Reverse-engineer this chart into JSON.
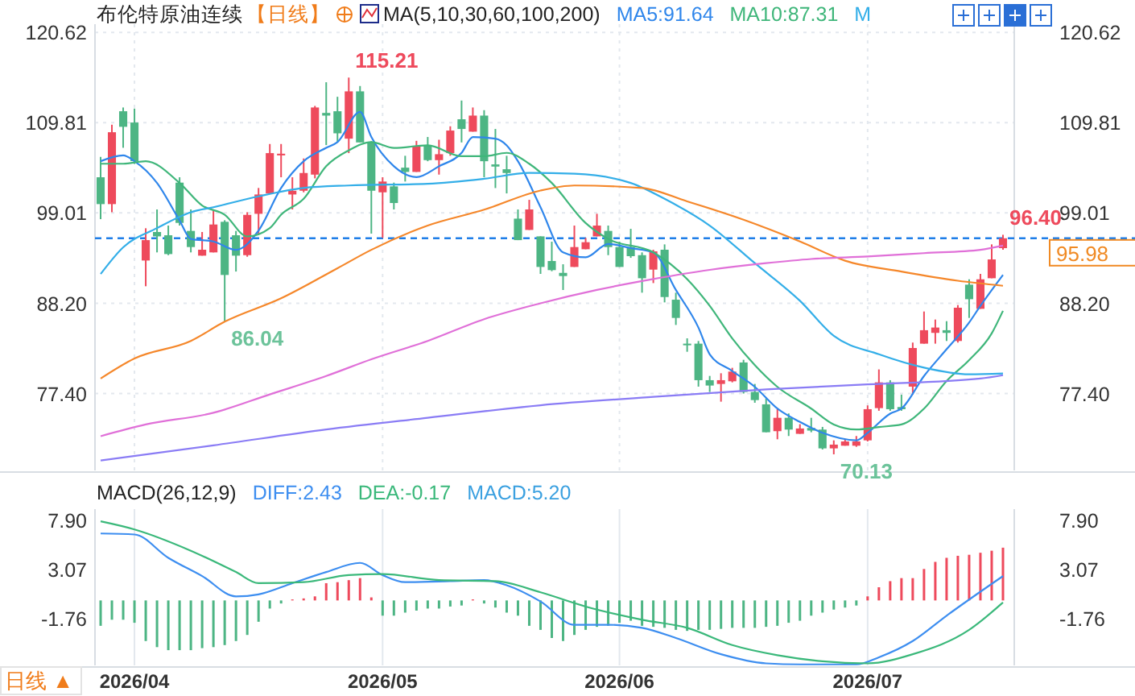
{
  "chart_data": [
    {
      "type": "candlestick",
      "title": "布伦特原油连续",
      "subtitle": "【日线】",
      "legend_title": "MA(5,10,30,60,100,200)",
      "legend": "top",
      "grid": true,
      "tick_labels": "y",
      "categories": [
        null,
        null,
        null,
        "2026/04",
        null,
        null,
        null,
        null,
        null,
        null,
        null,
        null,
        null,
        null,
        null,
        null,
        null,
        null,
        null,
        null,
        null,
        null,
        null,
        null,
        null,
        "2026/05",
        null,
        null,
        null,
        null,
        null,
        null,
        null,
        null,
        null,
        null,
        null,
        null,
        null,
        null,
        null,
        null,
        null,
        null,
        null,
        null,
        "2026/06",
        null,
        null,
        null,
        null,
        null,
        null,
        null,
        null,
        null,
        null,
        null,
        null,
        null,
        null,
        null,
        null,
        null,
        null,
        null,
        null,
        null,
        "2026/07",
        null,
        null,
        null,
        null,
        null,
        null,
        null,
        null,
        null,
        null,
        null,
        null
      ],
      "ylim": [
        68.2,
        121.6
      ],
      "yticks": [
        {
          "value": 77.4,
          "label": "77.40"
        },
        {
          "value": 88.2,
          "label": "88.20"
        },
        {
          "value": 99.01,
          "label": "99.01"
        },
        {
          "value": 109.81,
          "label": "109.81"
        },
        {
          "value": 120.62,
          "label": "120.62"
        }
      ],
      "y2lim": [
        68.2,
        121.6
      ],
      "y2ticks": [
        {
          "value": 77.4,
          "label": "77.40"
        },
        {
          "value": 88.2,
          "label": "88.20"
        },
        {
          "value": 99.01,
          "label": "99.01"
        },
        {
          "value": 109.81,
          "label": "109.81"
        },
        {
          "value": 120.62,
          "label": "120.62"
        }
      ],
      "ohlc": [
        [
          103.28,
          105.72,
          98.27,
          100.07
        ],
        [
          100.07,
          109.57,
          99.1,
          108.67
        ],
        [
          111.18,
          111.63,
          106.81,
          109.32
        ],
        [
          109.83,
          111.5,
          104.88,
          105.21
        ],
        [
          93.32,
          97.18,
          90.24,
          95.76
        ],
        [
          96.73,
          99.43,
          94.29,
          96.21
        ],
        [
          96.34,
          97.5,
          93.96,
          94.09
        ],
        [
          102.64,
          103.28,
          97.5,
          97.82
        ],
        [
          96.86,
          99.43,
          94.29,
          94.93
        ],
        [
          93.9,
          96.73,
          93.9,
          94.61
        ],
        [
          94.29,
          99.43,
          94.29,
          97.63
        ],
        [
          97.95,
          98.14,
          86.04,
          91.59
        ],
        [
          96.34,
          96.86,
          92.0,
          93.9
        ],
        [
          93.96,
          99.1,
          93.77,
          98.78
        ],
        [
          98.91,
          102.0,
          96.4,
          101.22
        ],
        [
          101.35,
          107.26,
          101.35,
          106.17
        ],
        [
          105.9,
          107.26,
          103.28,
          106.1
        ],
        [
          101.22,
          103.28,
          99.43,
          101.67
        ],
        [
          101.67,
          105.53,
          101.48,
          103.79
        ],
        [
          103.6,
          111.82,
          103.15,
          111.63
        ],
        [
          110.98,
          114.65,
          107.13,
          110.66
        ],
        [
          111.18,
          112.91,
          107.45,
          108.54
        ],
        [
          107.9,
          115.21,
          106.17,
          113.56
        ],
        [
          113.56,
          114.2,
          107.45,
          107.45
        ],
        [
          107.45,
          107.6,
          96.54,
          101.67
        ],
        [
          101.48,
          103.28,
          96.02,
          102.77
        ],
        [
          102.19,
          102.64,
          99.43,
          100.2
        ],
        [
          104.43,
          105.85,
          102.77,
          103.92
        ],
        [
          103.92,
          107.64,
          103.92,
          107.0
        ],
        [
          107.13,
          108.1,
          105.2,
          105.33
        ],
        [
          105.33,
          107.77,
          103.6,
          106.04
        ],
        [
          106.17,
          109.38,
          105.85,
          108.87
        ],
        [
          110.22,
          112.46,
          107.45,
          109.06
        ],
        [
          108.74,
          111.63,
          108.74,
          110.66
        ],
        [
          110.66,
          111.31,
          103.28,
          105.2
        ],
        [
          104.82,
          109.06,
          101.99,
          104.56
        ],
        [
          104.24,
          105.85,
          101.35,
          103.79
        ],
        [
          98.33,
          99.43,
          95.76,
          95.76
        ],
        [
          96.98,
          100.58,
          96.98,
          99.43
        ],
        [
          96.21,
          96.21,
          91.72,
          92.55
        ],
        [
          93.26,
          95.57,
          92.04,
          92.17
        ],
        [
          91.84,
          92.87,
          89.79,
          91.46
        ],
        [
          92.55,
          97.5,
          92.55,
          94.93
        ],
        [
          94.67,
          96.02,
          94.67,
          95.51
        ],
        [
          96.21,
          98.91,
          96.21,
          97.5
        ],
        [
          96.86,
          97.5,
          93.96,
          94.93
        ],
        [
          94.93,
          95.57,
          92.55,
          92.55
        ],
        [
          94.93,
          97.11,
          93.64,
          93.84
        ],
        [
          93.96,
          94.29,
          89.47,
          91.2
        ],
        [
          92.23,
          94.61,
          90.62,
          94.42
        ],
        [
          94.61,
          95.25,
          88.31,
          88.95
        ],
        [
          88.63,
          89.47,
          85.61,
          86.45
        ],
        [
          83.37,
          84.01,
          82.4,
          83.18
        ],
        [
          83.37,
          83.69,
          78.23,
          79.0
        ],
        [
          79.0,
          79.51,
          77.59,
          78.36
        ],
        [
          78.55,
          79.83,
          76.43,
          79.0
        ],
        [
          78.87,
          80.48,
          78.74,
          80.03
        ],
        [
          81.12,
          81.44,
          77.4,
          77.59
        ],
        [
          77.59,
          78.55,
          76.3,
          76.62
        ],
        [
          76.11,
          76.82,
          72.77,
          72.77
        ],
        [
          72.9,
          75.53,
          71.93,
          74.5
        ],
        [
          74.5,
          75.02,
          72.32,
          73.09
        ],
        [
          72.58,
          73.74,
          72.58,
          73.22
        ],
        [
          73.29,
          74.5,
          72.77,
          72.97
        ],
        [
          73.09,
          73.41,
          70.71,
          70.84
        ],
        [
          70.84,
          71.8,
          70.13,
          71.29
        ],
        [
          71.16,
          71.93,
          71.16,
          71.67
        ],
        [
          71.16,
          72.32,
          71.03,
          71.67
        ],
        [
          71.8,
          75.98,
          71.67,
          75.53
        ],
        [
          75.66,
          80.29,
          75.34,
          78.74
        ],
        [
          78.74,
          79.0,
          75.34,
          75.53
        ],
        [
          75.79,
          77.27,
          75.34,
          75.53
        ],
        [
          78.23,
          83.5,
          77.27,
          82.85
        ],
        [
          83.37,
          87.22,
          83.37,
          84.98
        ],
        [
          84.66,
          86.26,
          83.37,
          85.3
        ],
        [
          84.98,
          86.06,
          83.69,
          84.66
        ],
        [
          83.69,
          87.99,
          83.5,
          87.67
        ],
        [
          90.43,
          91.07,
          86.45,
          88.69
        ],
        [
          87.54,
          91.72,
          87.54,
          91.07
        ],
        [
          91.2,
          95.25,
          91.2,
          93.45
        ],
        [
          94.8,
          96.4,
          94.61,
          95.98
        ]
      ],
      "colors": [
        "#4db584",
        "#ee4a5c",
        "#4db584",
        "#4db584",
        "#ee4a5c",
        "#4db584",
        "#4db584",
        "#4db584",
        "#4db584",
        "#ee4a5c",
        "#ee4a5c",
        "#4db584",
        "#4db584",
        "#ee4a5c",
        "#ee4a5c",
        "#ee4a5c",
        "#ee4a5c",
        "#ee4a5c",
        "#ee4a5c",
        "#ee4a5c",
        "#4db584",
        "#4db584",
        "#ee4a5c",
        "#4db584",
        "#4db584",
        "#ee4a5c",
        "#4db584",
        "#4db584",
        "#ee4a5c",
        "#4db584",
        "#ee4a5c",
        "#ee4a5c",
        "#4db584",
        "#ee4a5c",
        "#4db584",
        "#4db584",
        "#4db584",
        "#4db584",
        "#ee4a5c",
        "#4db584",
        "#4db584",
        "#4db584",
        "#ee4a5c",
        "#ee4a5c",
        "#ee4a5c",
        "#4db584",
        "#4db584",
        "#4db584",
        "#4db584",
        "#ee4a5c",
        "#4db584",
        "#4db584",
        "#4db584",
        "#4db584",
        "#4db584",
        "#ee4a5c",
        "#ee4a5c",
        "#4db584",
        "#4db584",
        "#4db584",
        "#ee4a5c",
        "#4db584",
        "#ee4a5c",
        "#4db584",
        "#4db584",
        "#ee4a5c",
        "#ee4a5c",
        "#ee4a5c",
        "#ee4a5c",
        "#ee4a5c",
        "#4db584",
        "#4db584",
        "#ee4a5c",
        "#ee4a5c",
        "#ee4a5c",
        "#4db584",
        "#ee4a5c",
        "#4db584",
        "#ee4a5c",
        "#ee4a5c",
        "#ee4a5c"
      ],
      "series": [
        {
          "type": "line",
          "name": "MA5:91.64",
          "color": "#2f86eb",
          "values": [
            105.2,
            null,
            105.9,
            105.2,
            null,
            102.6,
            null,
            98.1,
            95.9,
            null,
            95.6,
            null,
            94.6,
            null,
            96.9,
            null,
            102.0,
            null,
            105.2,
            null,
            106.8,
            107.5,
            null,
            111.1,
            108.1,
            null,
            104.6,
            null,
            103.3,
            null,
            104.6,
            null,
            106.2,
            108.1,
            null,
            107.9,
            107.1,
            105.2,
            null,
            99.7,
            null,
            94.3,
            null,
            93.7,
            null,
            95.3,
            null,
            94.8,
            null,
            94.3,
            null,
            89.8,
            null,
            85.3,
            82.1,
            null,
            80.1,
            null,
            78.2,
            null,
            75.6,
            null,
            74.0,
            null,
            72.7,
            null,
            null,
            71.8,
            72.7,
            null,
            75.0,
            75.6,
            null,
            79.5,
            null,
            82.7,
            null,
            85.9,
            87.9,
            null,
            91.6
          ]
        },
        {
          "type": "line",
          "name": "MA10:87.31",
          "color": "#3fb67a",
          "values": [
            104.9,
            null,
            104.9,
            null,
            105.2,
            null,
            null,
            102.6,
            null,
            99.9,
            null,
            98.8,
            null,
            96.2,
            null,
            97.2,
            98.8,
            null,
            100.7,
            null,
            104.6,
            null,
            106.5,
            null,
            107.5,
            null,
            106.8,
            null,
            null,
            107.1,
            null,
            null,
            105.8,
            null,
            105.8,
            null,
            106.2,
            null,
            104.9,
            null,
            102.6,
            null,
            null,
            97.8,
            null,
            95.9,
            null,
            null,
            null,
            94.3,
            null,
            null,
            91.1,
            null,
            87.9,
            null,
            84.0,
            null,
            80.8,
            null,
            78.2,
            null,
            null,
            75.6,
            null,
            73.7,
            null,
            73.1,
            null,
            73.4,
            null,
            73.7,
            null,
            75.6,
            null,
            78.9,
            null,
            81.4,
            null,
            84.6,
            87.3
          ]
        },
        {
          "type": "line",
          "name": "M",
          "color": "#33aee8",
          "values": [
            91.7,
            null,
            94.9,
            null,
            null,
            97.2,
            null,
            null,
            99.1,
            null,
            99.7,
            null,
            null,
            null,
            101.0,
            null,
            null,
            null,
            102.0,
            null,
            null,
            null,
            102.3,
            null,
            null,
            null,
            null,
            null,
            null,
            102.5,
            null,
            null,
            null,
            null,
            103.1,
            null,
            null,
            null,
            103.8,
            null,
            null,
            null,
            103.7,
            null,
            null,
            null,
            null,
            102.6,
            null,
            null,
            100.7,
            null,
            null,
            null,
            97.5,
            null,
            null,
            null,
            93.0,
            null,
            null,
            null,
            88.5,
            null,
            null,
            84.3,
            null,
            null,
            null,
            82.1,
            null,
            null,
            null,
            80.5,
            null,
            null,
            null,
            79.7,
            null,
            null,
            79.8
          ]
        },
        {
          "type": "line",
          "color": "#f5872a",
          "values": [
            79.2,
            null,
            null,
            81.6,
            null,
            null,
            null,
            null,
            83.7,
            null,
            null,
            86.0,
            null,
            null,
            null,
            null,
            88.8,
            null,
            null,
            null,
            null,
            92.4,
            null,
            null,
            94.6,
            null,
            null,
            null,
            null,
            97.5,
            null,
            null,
            null,
            null,
            99.4,
            null,
            null,
            null,
            null,
            101.7,
            null,
            null,
            102.3,
            null,
            null,
            null,
            null,
            null,
            102.0,
            null,
            null,
            null,
            100.4,
            null,
            null,
            null,
            null,
            98.2,
            null,
            null,
            null,
            null,
            95.6,
            null,
            null,
            null,
            93.3,
            null,
            null,
            null,
            null,
            92.0,
            null,
            null,
            null,
            null,
            90.9,
            null,
            null,
            null,
            90.3
          ]
        },
        {
          "type": "line",
          "color": "#e070d8",
          "values": [
            72.3,
            null,
            null,
            null,
            73.7,
            null,
            null,
            null,
            null,
            null,
            75.1,
            null,
            null,
            null,
            null,
            77.3,
            null,
            null,
            null,
            null,
            79.5,
            null,
            null,
            null,
            81.5,
            null,
            null,
            null,
            null,
            83.7,
            null,
            null,
            null,
            null,
            86.3,
            null,
            null,
            null,
            null,
            88.2,
            null,
            null,
            null,
            null,
            89.8,
            null,
            null,
            null,
            null,
            91.1,
            null,
            null,
            null,
            null,
            92.2,
            null,
            null,
            null,
            null,
            93.0,
            null,
            null,
            null,
            93.5,
            null,
            null,
            null,
            null,
            93.8,
            null,
            null,
            null,
            null,
            94.2,
            null,
            null,
            null,
            null,
            94.6,
            null,
            95.1
          ]
        },
        {
          "type": "line",
          "color": "#8a7cf5",
          "values": [
            69.4,
            null,
            null,
            null,
            null,
            null,
            null,
            null,
            null,
            null,
            71.2,
            null,
            null,
            null,
            null,
            null,
            null,
            null,
            null,
            null,
            73.1,
            null,
            null,
            null,
            null,
            null,
            null,
            null,
            null,
            74.5,
            null,
            null,
            null,
            null,
            null,
            null,
            null,
            null,
            null,
            76.0,
            null,
            null,
            null,
            null,
            null,
            null,
            null,
            null,
            null,
            77.0,
            null,
            null,
            null,
            null,
            null,
            null,
            null,
            null,
            null,
            77.9,
            null,
            null,
            null,
            null,
            null,
            null,
            null,
            null,
            78.5,
            null,
            null,
            null,
            null,
            null,
            null,
            null,
            null,
            null,
            79.2,
            null,
            79.6
          ]
        }
      ],
      "ref_lines": [
        {
          "axis": "y2",
          "value": 95.98,
          "label": "95.98",
          "color": "#1e7ee8",
          "line_style": "dashed"
        }
      ],
      "annotations": [
        "115.21",
        "86.04",
        "96.40",
        "70.13"
      ]
    },
    {
      "type": "bar",
      "legend_title": "MACD(26,12,9)",
      "legend": "top left",
      "grid": "x",
      "categories": [
        null,
        null,
        null,
        "2026/04",
        null,
        null,
        null,
        null,
        null,
        null,
        null,
        null,
        null,
        null,
        null,
        null,
        null,
        null,
        null,
        null,
        null,
        null,
        null,
        null,
        null,
        "2026/05",
        null,
        null,
        null,
        null,
        null,
        null,
        null,
        null,
        null,
        null,
        null,
        null,
        null,
        null,
        null,
        null,
        null,
        null,
        null,
        null,
        "2026/06",
        null,
        null,
        null,
        null,
        null,
        null,
        null,
        null,
        null,
        null,
        null,
        null,
        null,
        null,
        null,
        null,
        null,
        null,
        null,
        null,
        null,
        "2026/07",
        null,
        null,
        null,
        null,
        null,
        null,
        null,
        null,
        null,
        null,
        null,
        null
      ],
      "ylim": [
        -6.4,
        9.0
      ],
      "yticks": [
        {
          "value": -1.76,
          "label": "-1.76"
        },
        {
          "value": 3.07,
          "label": "3.07"
        },
        {
          "value": 7.9,
          "label": "7.90"
        }
      ],
      "y2lim": [
        -6.4,
        9.0
      ],
      "y2ticks": [
        {
          "value": -1.76,
          "label": "-1.76"
        },
        {
          "value": 3.07,
          "label": "3.07"
        },
        {
          "value": 7.9,
          "label": "7.90"
        }
      ],
      "series": [
        {
          "type": "bar",
          "values": [
            -2.5,
            -1.9,
            -1.9,
            -2.2,
            -4.0,
            -4.6,
            -4.9,
            -4.9,
            -4.9,
            -4.7,
            -4.6,
            -4.4,
            -4.0,
            -3.4,
            -2.1,
            -0.8,
            -0.3,
            0.1,
            0.2,
            0.4,
            1.7,
            1.8,
            2.0,
            2.2,
            0.3,
            -1.5,
            -1.5,
            -1.2,
            -1.0,
            -0.8,
            -0.8,
            -0.6,
            -0.5,
            0.1,
            -0.3,
            -0.7,
            -1.2,
            -1.5,
            -2.5,
            -2.9,
            -3.7,
            -4.0,
            -3.4,
            -2.9,
            -2.6,
            -2.5,
            -2.2,
            -2.0,
            -2.5,
            -2.6,
            -2.7,
            -2.9,
            -3.0,
            -2.9,
            -2.9,
            -2.8,
            -2.7,
            -2.7,
            -2.7,
            -2.6,
            -2.5,
            -2.2,
            -2.0,
            -1.5,
            -1.2,
            -0.9,
            -0.7,
            -0.5,
            0.4,
            1.3,
            1.9,
            2.2,
            2.2,
            3.1,
            3.8,
            4.2,
            4.4,
            4.5,
            4.7,
            4.9,
            5.2
          ],
          "colors": [
            "#4db584",
            "#4db584",
            "#4db584",
            "#4db584",
            "#4db584",
            "#4db584",
            "#4db584",
            "#4db584",
            "#4db584",
            "#4db584",
            "#4db584",
            "#4db584",
            "#4db584",
            "#4db584",
            "#4db584",
            "#4db584",
            "#4db584",
            "#ee4a5c",
            "#ee4a5c",
            "#ee4a5c",
            "#ee4a5c",
            "#ee4a5c",
            "#ee4a5c",
            "#ee4a5c",
            "#ee4a5c",
            "#4db584",
            "#4db584",
            "#4db584",
            "#4db584",
            "#4db584",
            "#4db584",
            "#4db584",
            "#4db584",
            "#ee4a5c",
            "#4db584",
            "#4db584",
            "#4db584",
            "#4db584",
            "#4db584",
            "#4db584",
            "#4db584",
            "#4db584",
            "#4db584",
            "#4db584",
            "#4db584",
            "#4db584",
            "#4db584",
            "#4db584",
            "#4db584",
            "#4db584",
            "#4db584",
            "#4db584",
            "#4db584",
            "#4db584",
            "#4db584",
            "#4db584",
            "#4db584",
            "#4db584",
            "#4db584",
            "#4db584",
            "#4db584",
            "#4db584",
            "#4db584",
            "#4db584",
            "#4db584",
            "#4db584",
            "#4db584",
            "#4db584",
            "#ee4a5c",
            "#ee4a5c",
            "#ee4a5c",
            "#ee4a5c",
            "#ee4a5c",
            "#ee4a5c",
            "#ee4a5c",
            "#ee4a5c",
            "#ee4a5c",
            "#ee4a5c",
            "#ee4a5c",
            "#ee4a5c",
            "#ee4a5c"
          ]
        },
        {
          "type": "line",
          "name": "DIFF:2.43",
          "color": "#3d8ef0",
          "values": [
            6.6,
            null,
            null,
            6.5,
            null,
            null,
            4.2,
            null,
            null,
            2.4,
            null,
            null,
            0.4,
            null,
            0.6,
            null,
            null,
            1.7,
            null,
            null,
            2.8,
            null,
            null,
            3.7,
            null,
            2.5,
            null,
            1.8,
            null,
            null,
            null,
            1.9,
            null,
            null,
            2.0,
            null,
            1.5,
            null,
            null,
            -0.1,
            null,
            null,
            -2.4,
            null,
            null,
            -2.4,
            null,
            null,
            -2.7,
            null,
            null,
            -3.7,
            null,
            null,
            null,
            -5.3,
            null,
            null,
            null,
            -6.2,
            null,
            null,
            -6.3,
            null,
            null,
            null,
            null,
            -6.3,
            null,
            -5.6,
            null,
            null,
            -4.0,
            null,
            null,
            -1.5,
            null,
            null,
            null,
            null,
            2.4
          ]
        },
        {
          "type": "line",
          "name": "DEA:-0.17",
          "color": "#3ab87a",
          "values": [
            7.8,
            null,
            null,
            7.0,
            null,
            null,
            null,
            null,
            4.9,
            null,
            null,
            null,
            2.8,
            null,
            1.7,
            null,
            null,
            null,
            1.8,
            null,
            null,
            null,
            2.5,
            null,
            null,
            2.6,
            null,
            null,
            null,
            null,
            2.0,
            null,
            null,
            null,
            null,
            1.9,
            null,
            null,
            null,
            0.8,
            null,
            null,
            null,
            -0.6,
            null,
            null,
            null,
            null,
            -1.9,
            null,
            null,
            null,
            -2.7,
            null,
            null,
            null,
            -4.4,
            null,
            null,
            null,
            -5.4,
            null,
            null,
            null,
            -6.0,
            null,
            null,
            null,
            -6.2,
            null,
            null,
            null,
            -5.3,
            null,
            null,
            null,
            null,
            -2.9,
            null,
            null,
            -0.2
          ]
        }
      ],
      "annotations": [
        "MACD:5.20",
        "日线 ▲"
      ]
    }
  ]
}
